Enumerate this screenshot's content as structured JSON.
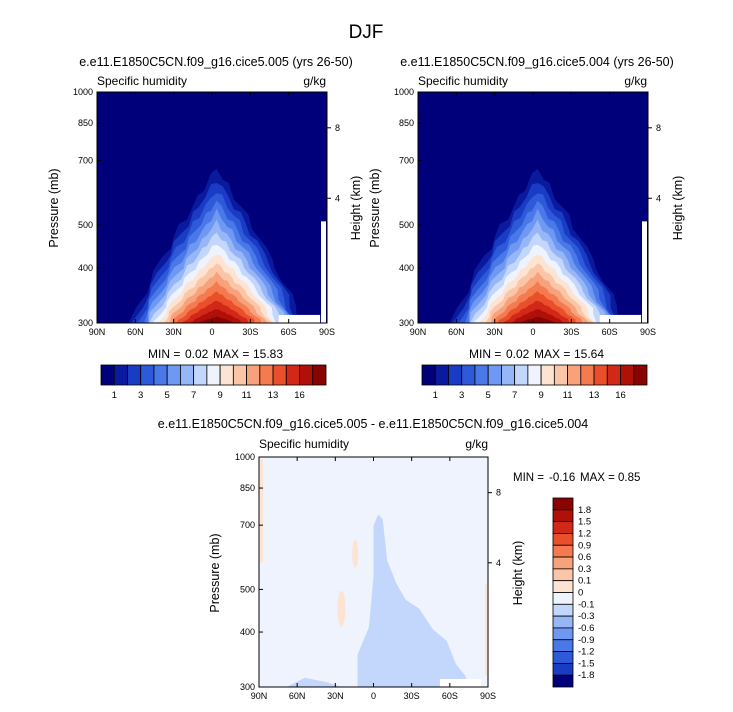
{
  "page_title": "DJF",
  "chart_data": [
    {
      "type": "heatmap",
      "variable": "Specific humidity",
      "title": "e.e11.E1850C5CN.f09_g16.cice5.005 (yrs 26-50)",
      "left_label": "Specific humidity",
      "right_label": "g/kg",
      "ylabel": "Pressure (mb)",
      "y2label": "Height (km)",
      "xticks": [
        "90N",
        "60N",
        "30N",
        "0",
        "30S",
        "60S",
        "90S"
      ],
      "yticks": [
        "300",
        "400",
        "500",
        "700",
        "850",
        "1000"
      ],
      "y2ticks": [
        "8",
        "4"
      ],
      "ylim": [
        1000,
        300
      ],
      "min_label": "MIN =",
      "min": "0.02",
      "max_label": "MAX =",
      "max": "15.83",
      "shape": {
        "height": 0.72,
        "center": 0.52,
        "half_width": 0.38
      }
    },
    {
      "type": "heatmap",
      "variable": "Specific humidity",
      "title": "e.e11.E1850C5CN.f09_g16.cice5.004 (yrs 26-50)",
      "left_label": "Specific humidity",
      "right_label": "g/kg",
      "ylabel": "Pressure (mb)",
      "y2label": "Height (km)",
      "xticks": [
        "90N",
        "60N",
        "30N",
        "0",
        "30S",
        "60S",
        "90S"
      ],
      "yticks": [
        "300",
        "400",
        "500",
        "700",
        "850",
        "1000"
      ],
      "y2ticks": [
        "8",
        "4"
      ],
      "ylim": [
        1000,
        300
      ],
      "min_label": "MIN =",
      "min": "0.02",
      "max_label": "MAX =",
      "max": "15.64",
      "shape": {
        "height": 0.72,
        "center": 0.52,
        "half_width": 0.38
      }
    },
    {
      "type": "heatmap",
      "variable": "Specific humidity difference",
      "title": "e.e11.E1850C5CN.f09_g16.cice5.005 - e.e11.E1850C5CN.f09_g16.cice5.004",
      "left_label": "Specific humidity",
      "right_label": "g/kg",
      "ylabel": "Pressure (mb)",
      "y2label": "Height (km)",
      "xticks": [
        "90N",
        "60N",
        "30N",
        "0",
        "30S",
        "60S",
        "90S"
      ],
      "yticks": [
        "300",
        "400",
        "500",
        "700",
        "850",
        "1000"
      ],
      "y2ticks": [
        "8",
        "4"
      ],
      "ylim": [
        1000,
        300
      ],
      "min_label": "MIN =",
      "min": "-0.16",
      "max_label": "MAX =",
      "max": "0.85"
    }
  ],
  "colorbar_abs": {
    "labels": [
      "1",
      "3",
      "5",
      "7",
      "9",
      "11",
      "13",
      "16"
    ],
    "colors": [
      "#00007a",
      "#0a1a9e",
      "#1a3cc4",
      "#2e5ad9",
      "#4a78e8",
      "#6f98f2",
      "#96b6f7",
      "#c3d6fb",
      "#eef3fd",
      "#fde3d2",
      "#fbc6a8",
      "#f8a27c",
      "#f47a50",
      "#ea4f2c",
      "#d22817",
      "#b11009",
      "#8a0303"
    ]
  },
  "colorbar_diff": {
    "labels": [
      "1.8",
      "1.5",
      "1.2",
      "0.9",
      "0.6",
      "0.3",
      "0.1",
      "0",
      "-0.1",
      "-0.3",
      "-0.6",
      "-0.9",
      "-1.2",
      "-1.5",
      "-1.8"
    ],
    "colors": [
      "#8a0303",
      "#b11009",
      "#d22817",
      "#ea4f2c",
      "#f47a50",
      "#f8a27c",
      "#fbc6a8",
      "#fde3d2",
      "#eef3fd",
      "#c3d6fb",
      "#96b6f7",
      "#6f98f2",
      "#4a78e8",
      "#2e5ad9",
      "#1a3cc4",
      "#00007a"
    ]
  }
}
